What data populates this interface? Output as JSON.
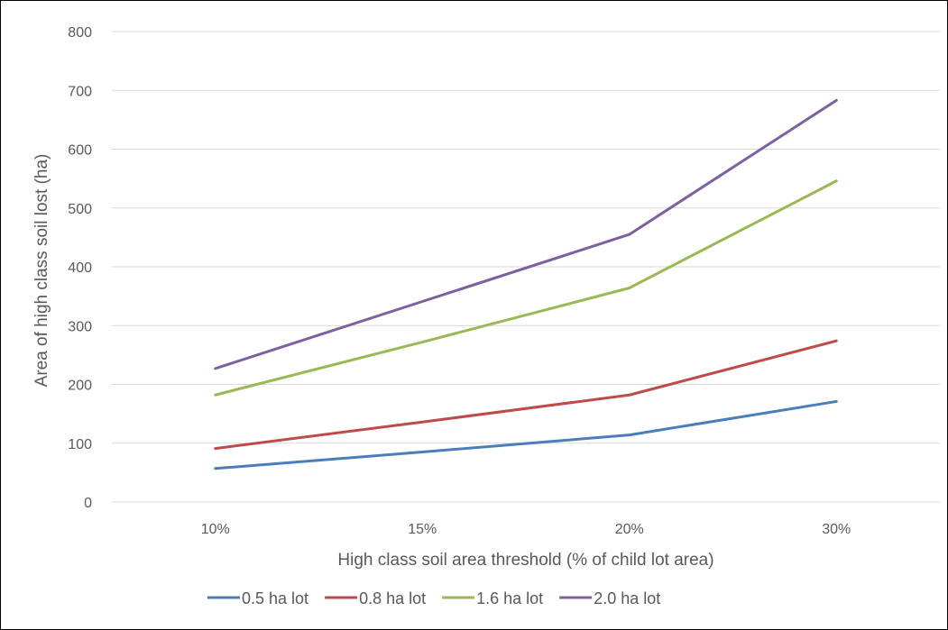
{
  "chart_data": {
    "type": "line",
    "title": "",
    "xlabel": "High class soil area threshold (% of child lot area)",
    "ylabel": "Area of high class soil lost  (ha)",
    "categories": [
      "10%",
      "15%",
      "20%",
      "30%"
    ],
    "y_ticks": [
      "0",
      "100",
      "200",
      "300",
      "400",
      "500",
      "600",
      "700",
      "800"
    ],
    "ylim": [
      0,
      800
    ],
    "grid": true,
    "legend_position": "bottom",
    "series": [
      {
        "name": "0.5 ha lot",
        "color": "#4a7ebb",
        "values": [
          57,
          85,
          114,
          171
        ]
      },
      {
        "name": "0.8  ha lot",
        "color": "#be4b48",
        "values": [
          91,
          136,
          182,
          274
        ]
      },
      {
        "name": "1.6  ha lot",
        "color": "#98b954",
        "values": [
          182,
          272,
          364,
          546
        ]
      },
      {
        "name": "2.0  ha lot",
        "color": "#7d60a0",
        "values": [
          227,
          341,
          455,
          683
        ]
      }
    ]
  }
}
